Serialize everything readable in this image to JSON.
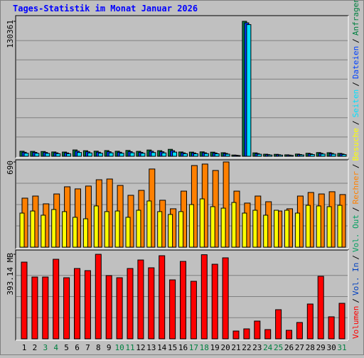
{
  "legend_separator": "/",
  "chart_data": [
    {
      "type": "bar",
      "title": "Tages-Statistik im Monat Januar 2026",
      "ylim": [
        0,
        130361
      ],
      "yticks": [
        130361
      ],
      "series": [
        {
          "name": "Anfragen",
          "color": "#008040",
          "values": [
            4850,
            4720,
            4610,
            4180,
            4090,
            6120,
            5380,
            4930,
            5510,
            4870,
            5640,
            4760,
            6050,
            5420,
            6710,
            4150,
            4020,
            4260,
            3980,
            3430,
            1210,
            130361,
            3290,
            2010,
            1890,
            1420,
            2150,
            2890,
            3570,
            3440,
            2780
          ]
        },
        {
          "name": "Dateien",
          "color": "#0040ff",
          "values": [
            3880,
            3780,
            3690,
            3340,
            3270,
            4900,
            4300,
            3940,
            4410,
            3900,
            4510,
            3810,
            4840,
            4340,
            5370,
            3320,
            3220,
            3410,
            3180,
            2740,
            970,
            128900,
            2630,
            1610,
            1510,
            1140,
            1720,
            2310,
            2860,
            2750,
            2220
          ]
        },
        {
          "name": "Seiten",
          "color": "#00e0ff",
          "values": [
            2910,
            2830,
            2770,
            2510,
            2450,
            3670,
            3230,
            2960,
            3310,
            2920,
            3380,
            2860,
            3630,
            3250,
            4030,
            2490,
            2410,
            2560,
            2390,
            2060,
            730,
            127200,
            1970,
            1210,
            1130,
            850,
            1290,
            1730,
            2140,
            2060,
            1670
          ]
        }
      ]
    },
    {
      "type": "bar",
      "ylim": [
        0,
        690
      ],
      "yticks": [
        690
      ],
      "series": [
        {
          "name": "Besuche",
          "color": "#ffff00",
          "values": [
            276,
            293,
            259,
            305,
            288,
            242,
            230,
            334,
            288,
            293,
            242,
            299,
            374,
            288,
            265,
            288,
            345,
            391,
            328,
            316,
            362,
            276,
            299,
            259,
            299,
            299,
            276,
            339,
            334,
            328,
            339
          ]
        },
        {
          "name": "Rechner",
          "color": "#ff8000",
          "values": [
            397,
            414,
            351,
            431,
            489,
            472,
            495,
            546,
            552,
            500,
            420,
            460,
            633,
            380,
            311,
            454,
            661,
            673,
            621,
            690,
            454,
            357,
            414,
            368,
            293,
            311,
            414,
            443,
            431,
            449,
            426
          ]
        }
      ]
    },
    {
      "type": "bar",
      "ylim": [
        0,
        393.14
      ],
      "yticks": [
        {
          "value": 393.14,
          "label": "393.14 MB"
        }
      ],
      "categories": [
        "1",
        "2",
        "3",
        "4",
        "5",
        "6",
        "7",
        "8",
        "9",
        "10",
        "11",
        "12",
        "13",
        "14",
        "15",
        "16",
        "17",
        "18",
        "19",
        "20",
        "21",
        "22",
        "23",
        "24",
        "25",
        "26",
        "27",
        "28",
        "29",
        "30",
        "31"
      ],
      "category_colors": [
        "#000000",
        "#000000",
        "#008040",
        "#008040",
        "#000000",
        "#000000",
        "#000000",
        "#000000",
        "#000000",
        "#008040",
        "#008040",
        "#000000",
        "#000000",
        "#000000",
        "#000000",
        "#000000",
        "#008040",
        "#008040",
        "#000000",
        "#000000",
        "#000000",
        "#000000",
        "#000000",
        "#008040",
        "#008040",
        "#000000",
        "#000000",
        "#000000",
        "#000000",
        "#000000",
        "#008040"
      ],
      "series": [
        {
          "name": "Vol. Out",
          "color": "#00a060",
          "values": [
            0,
            0,
            0,
            0,
            0,
            0,
            0,
            0,
            0,
            0,
            0,
            0,
            0,
            0,
            0,
            0,
            0,
            0,
            0,
            0,
            0,
            0,
            0,
            0,
            0,
            0,
            0,
            0,
            0,
            0,
            0
          ]
        },
        {
          "name": "Vol. In",
          "color": "#0040c0",
          "values": [
            0,
            0,
            0,
            0,
            0,
            0,
            0,
            0,
            0,
            0,
            0,
            0,
            0,
            0,
            0,
            0,
            0,
            0,
            0,
            0,
            0,
            0,
            0,
            0,
            0,
            0,
            0,
            0,
            0,
            0,
            0
          ]
        },
        {
          "name": "Volumen",
          "color": "#ff0000",
          "values": [
            356.8,
            287.4,
            287.4,
            370.0,
            284.1,
            327.1,
            317.2,
            393.14,
            294.1,
            284.1,
            327.1,
            366.7,
            330.4,
            386.6,
            274.2,
            360.1,
            267.6,
            391.2,
            346.9,
            376.7,
            36.3,
            46.3,
            82.6,
            43.0,
            135.5,
            39.6,
            76.0,
            161.9,
            290.8,
            102.4,
            165.2
          ]
        }
      ]
    }
  ]
}
